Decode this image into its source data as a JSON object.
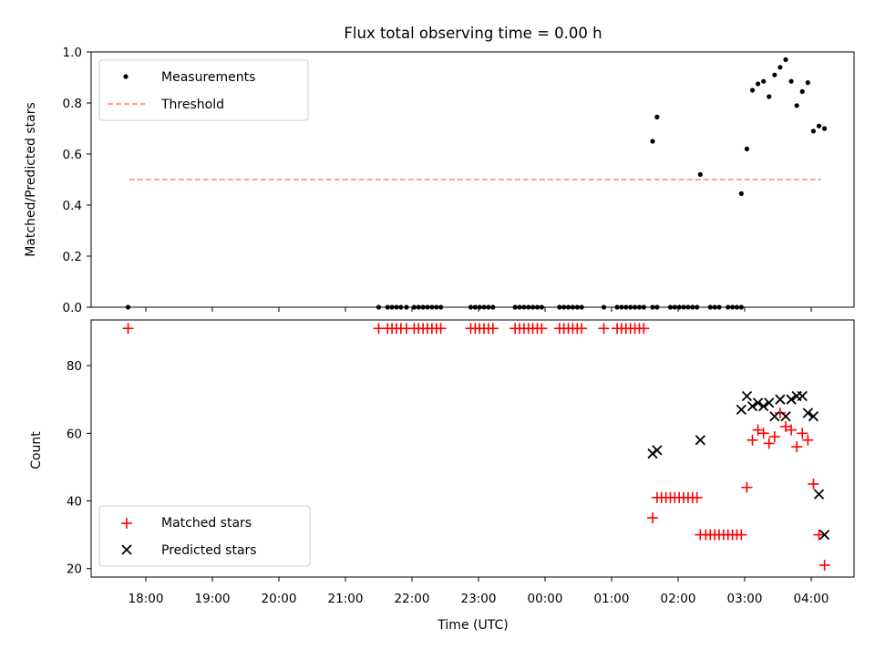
{
  "chart_data": [
    {
      "type": "scatter",
      "title": "Flux total observing time = 0.00 h",
      "ylabel": "Matched/Predicted stars",
      "xlabel": "",
      "ylim": [
        0,
        1.0
      ],
      "yticks": [
        "0.0",
        "0.2",
        "0.4",
        "0.6",
        "0.8",
        "1.0"
      ],
      "grid": false,
      "legend_placement": "top-left",
      "legend": [
        "Measurements",
        "Threshold"
      ],
      "threshold": {
        "name": "Threshold",
        "value": 0.5,
        "x_start": "17:45",
        "x_end": "04:09",
        "color": "#ff7f7f"
      },
      "series": [
        {
          "name": "Measurements",
          "color": "#000000",
          "x": [
            "17:44",
            "21:30",
            "21:38",
            "21:42",
            "21:46",
            "21:50",
            "21:55",
            "22:02",
            "22:06",
            "22:10",
            "22:14",
            "22:18",
            "22:22",
            "22:26",
            "22:53",
            "22:57",
            "23:01",
            "23:05",
            "23:09",
            "23:13",
            "23:33",
            "23:37",
            "23:41",
            "23:45",
            "23:49",
            "23:53",
            "23:57",
            "24:13",
            "24:17",
            "24:21",
            "24:25",
            "24:29",
            "24:33",
            "24:53",
            "25:05",
            "25:09",
            "25:13",
            "25:17",
            "25:21",
            "25:25",
            "25:29",
            "25:37",
            "25:41",
            "25:53",
            "25:57",
            "26:01",
            "26:05",
            "26:09",
            "26:13",
            "26:17",
            "26:29",
            "26:33",
            "26:37",
            "26:45",
            "26:49",
            "26:53",
            "26:57",
            "25:37",
            "25:41",
            "26:20",
            "26:57",
            "27:02",
            "27:07",
            "27:12",
            "27:17",
            "27:22",
            "27:27",
            "27:32",
            "27:37",
            "27:42",
            "27:47",
            "27:52",
            "27:57",
            "28:02",
            "28:07",
            "28:12"
          ],
          "y": [
            0,
            0,
            0,
            0,
            0,
            0,
            0,
            0,
            0,
            0,
            0,
            0,
            0,
            0,
            0,
            0,
            0,
            0,
            0,
            0,
            0,
            0,
            0,
            0,
            0,
            0,
            0,
            0,
            0,
            0,
            0,
            0,
            0,
            0,
            0,
            0,
            0,
            0,
            0,
            0,
            0,
            0,
            0,
            0,
            0,
            0,
            0,
            0,
            0,
            0,
            0,
            0,
            0,
            0,
            0,
            0,
            0,
            0.65,
            0.745,
            0.52,
            0.445,
            0.62,
            0.85,
            0.875,
            0.885,
            0.825,
            0.91,
            0.94,
            0.97,
            0.885,
            0.79,
            0.845,
            0.88,
            0.69,
            0.71,
            0.7
          ]
        }
      ]
    },
    {
      "type": "scatter",
      "title": "",
      "xlabel": "Time (UTC)",
      "ylabel": "Count",
      "ylim": [
        17.5,
        93.5
      ],
      "yticks": [
        "20",
        "40",
        "60",
        "80"
      ],
      "xticks": [
        "18:00",
        "19:00",
        "20:00",
        "21:00",
        "22:00",
        "23:00",
        "00:00",
        "01:00",
        "02:00",
        "03:00",
        "04:00"
      ],
      "grid": false,
      "legend_placement": "bottom-left",
      "legend": [
        "Matched stars",
        "Predicted stars"
      ],
      "series": [
        {
          "name": "Matched stars",
          "color": "#ff0000",
          "marker": "+",
          "x": [
            "17:44",
            "21:30",
            "21:38",
            "21:42",
            "21:46",
            "21:50",
            "21:55",
            "22:02",
            "22:06",
            "22:10",
            "22:14",
            "22:18",
            "22:22",
            "22:26",
            "22:53",
            "22:57",
            "23:01",
            "23:05",
            "23:09",
            "23:13",
            "23:33",
            "23:37",
            "23:41",
            "23:45",
            "23:49",
            "23:53",
            "23:57",
            "24:13",
            "24:17",
            "24:21",
            "24:25",
            "24:29",
            "24:33",
            "24:53",
            "25:05",
            "25:09",
            "25:13",
            "25:17",
            "25:21",
            "25:25",
            "25:29",
            "25:37",
            "25:41",
            "25:45",
            "25:49",
            "25:53",
            "25:57",
            "26:01",
            "26:05",
            "26:09",
            "26:13",
            "26:17",
            "26:20",
            "26:25",
            "26:29",
            "26:33",
            "26:37",
            "26:41",
            "26:45",
            "26:49",
            "26:53",
            "26:57",
            "27:02",
            "27:07",
            "27:12",
            "27:17",
            "27:22",
            "27:27",
            "27:32",
            "27:37",
            "27:42",
            "27:47",
            "27:52",
            "27:57",
            "28:02",
            "28:07",
            "28:12"
          ],
          "y": [
            91,
            91,
            91,
            91,
            91,
            91,
            91,
            91,
            91,
            91,
            91,
            91,
            91,
            91,
            91,
            91,
            91,
            91,
            91,
            91,
            91,
            91,
            91,
            91,
            91,
            91,
            91,
            91,
            91,
            91,
            91,
            91,
            91,
            91,
            91,
            91,
            91,
            91,
            91,
            91,
            91,
            35,
            41,
            41,
            41,
            41,
            41,
            41,
            41,
            41,
            41,
            41,
            30,
            30,
            30,
            30,
            30,
            30,
            30,
            30,
            30,
            30,
            44,
            58,
            61,
            60,
            57,
            59,
            66,
            62,
            61,
            56,
            60,
            58,
            45,
            30,
            21
          ]
        },
        {
          "name": "Predicted stars",
          "color": "#000000",
          "marker": "x",
          "x": [
            "25:37",
            "25:41",
            "26:20",
            "26:57",
            "27:02",
            "27:07",
            "27:12",
            "27:17",
            "27:22",
            "27:27",
            "27:32",
            "27:37",
            "27:42",
            "27:47",
            "27:52",
            "27:57",
            "28:02",
            "28:07",
            "28:12"
          ],
          "y": [
            54,
            55,
            58,
            67,
            71,
            68,
            69,
            68,
            69,
            65,
            70,
            65,
            70,
            71,
            71,
            66,
            65,
            42,
            30
          ]
        }
      ]
    }
  ]
}
